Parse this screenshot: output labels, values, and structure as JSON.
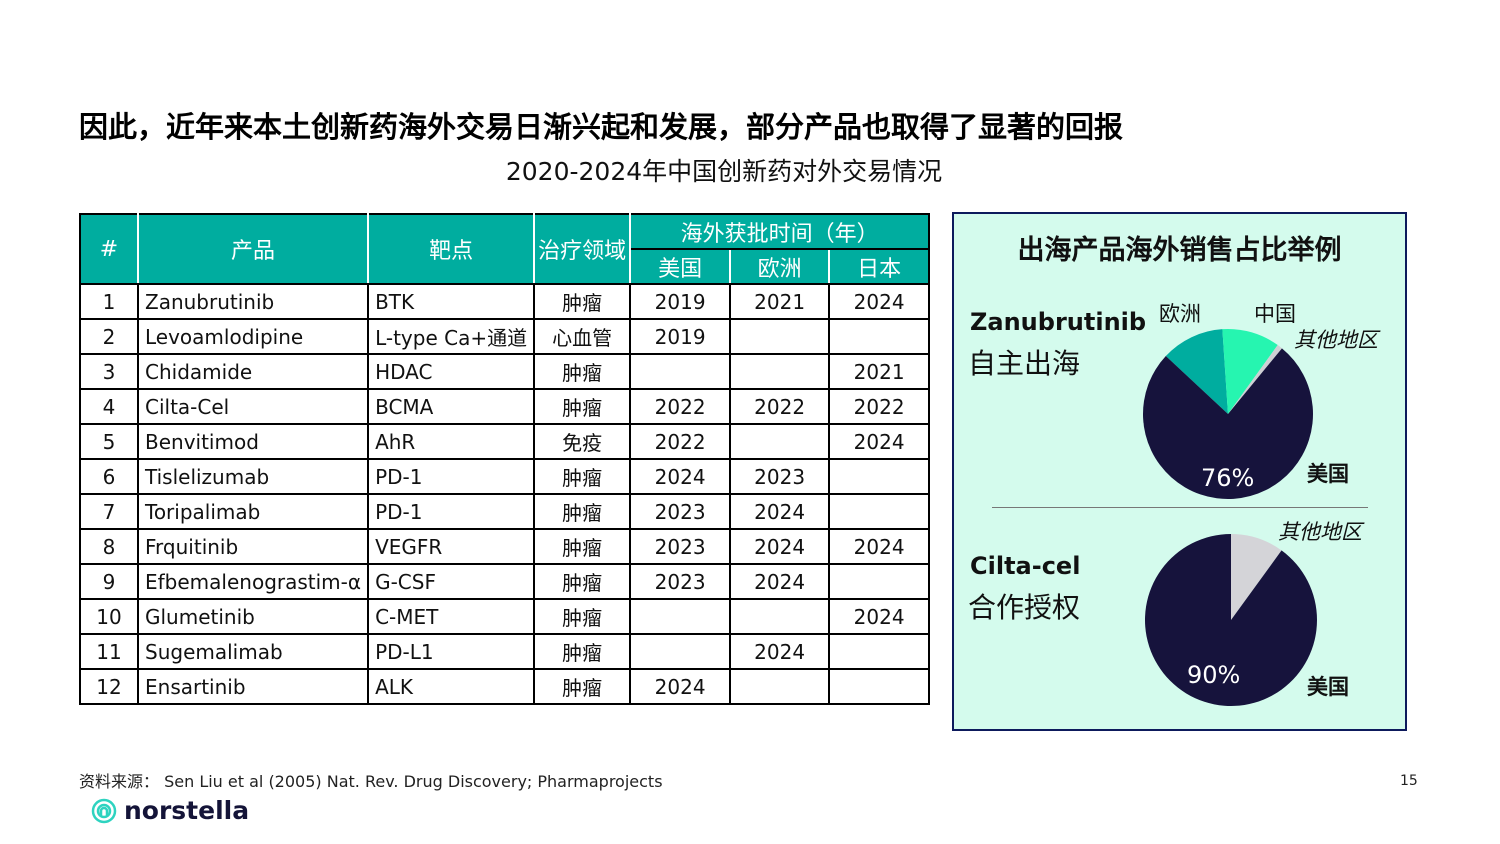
{
  "title": "因此，近年来本土创新药海外交易日渐兴起和发展，部分产品也取得了显著的回报",
  "subtitle": "2020-2024年中国创新药对外交易情况",
  "table": {
    "headers": {
      "num": "#",
      "product": "产品",
      "target": "靶点",
      "area": "治疗领域",
      "approval": "海外获批时间（年）",
      "us": "美国",
      "eu": "欧洲",
      "jp": "日本"
    },
    "rows": [
      [
        "1",
        "Zanubrutinib",
        "BTK",
        "肿瘤",
        "2019",
        "2021",
        "2024"
      ],
      [
        "2",
        "Levoamlodipine",
        "L-type Ca+通道",
        "心血管",
        "2019",
        "",
        ""
      ],
      [
        "3",
        "Chidamide",
        "HDAC",
        "肿瘤",
        "",
        "",
        "2021"
      ],
      [
        "4",
        "Cilta-Cel",
        "BCMA",
        "肿瘤",
        "2022",
        "2022",
        "2022"
      ],
      [
        "5",
        "Benvitimod",
        "AhR",
        "免疫",
        "2022",
        "",
        "2024"
      ],
      [
        "6",
        "Tislelizumab",
        "PD-1",
        "肿瘤",
        "2024",
        "2023",
        ""
      ],
      [
        "7",
        "Toripalimab",
        "PD-1",
        "肿瘤",
        "2023",
        "2024",
        ""
      ],
      [
        "8",
        "Frquitinib",
        "VEGFR",
        "肿瘤",
        "2023",
        "2024",
        "2024"
      ],
      [
        "9",
        "Efbemalenograstim-α",
        "G-CSF",
        "肿瘤",
        "2023",
        "2024",
        ""
      ],
      [
        "10",
        "Glumetinib",
        "C-MET",
        "肿瘤",
        "",
        "",
        "2024"
      ],
      [
        "11",
        "Sugemalimab",
        "PD-L1",
        "肿瘤",
        "",
        "2024",
        ""
      ],
      [
        "12",
        "Ensartinib",
        "ALK",
        "肿瘤",
        "2024",
        "",
        ""
      ]
    ]
  },
  "panel": {
    "title": "出海产品海外销售占比举例",
    "p1": {
      "name": "Zanubrutinib",
      "mode": "自主出海"
    },
    "p2": {
      "name": "Cilta-cel",
      "mode": "合作授权"
    }
  },
  "chart_data": [
    {
      "type": "pie",
      "slices": [
        {
          "label": "美国",
          "value": 76,
          "color": "#16133c"
        },
        {
          "label": "欧洲",
          "value": 12,
          "color": "#00ad9f"
        },
        {
          "label": "中国",
          "value": 11,
          "color": "#26f5b0"
        },
        {
          "label": "其他地区",
          "value": 1,
          "color": "#cfcfd4"
        }
      ],
      "data_label": "76%"
    },
    {
      "type": "pie",
      "slices": [
        {
          "label": "美国",
          "value": 90,
          "color": "#16133c"
        },
        {
          "label": "其他地区",
          "value": 10,
          "color": "#d4d4d8"
        }
      ],
      "data_label": "90%"
    }
  ],
  "footer": {
    "source": "资料来源：  Sen Liu et al (2005) Nat. Rev. Drug Discovery; Pharmaprojects",
    "page": "15",
    "logo": "norstella"
  }
}
